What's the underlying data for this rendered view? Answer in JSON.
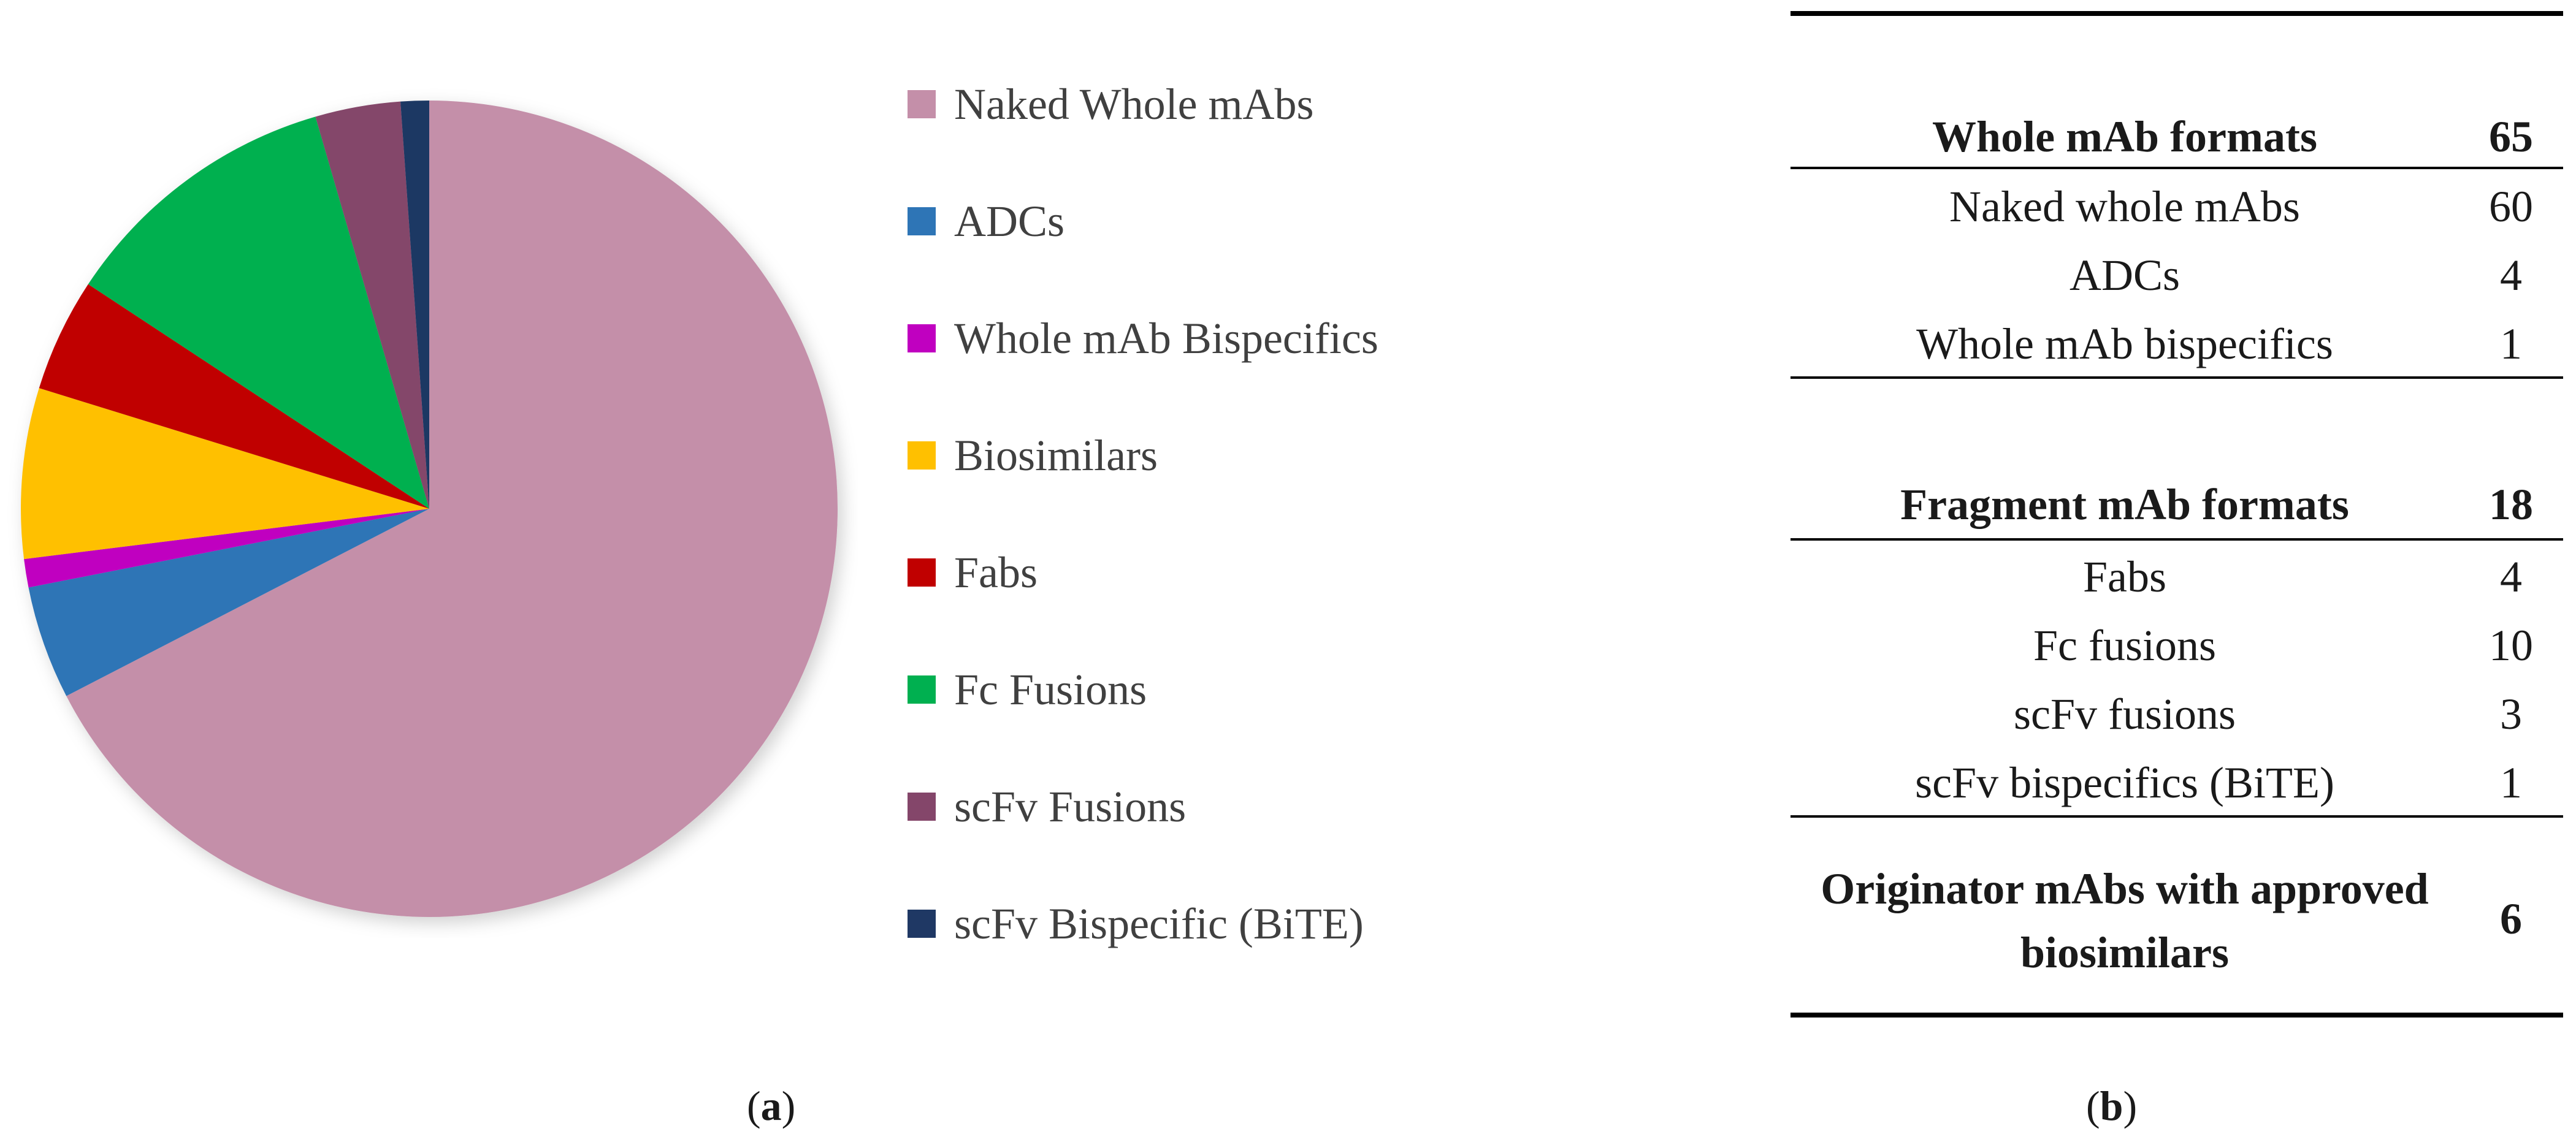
{
  "colors": {
    "naked": "#c48fa9",
    "adcs": "#2e75b6",
    "whole_bispecifics": "#c000c0",
    "biosimilars": "#ffc000",
    "fabs": "#c00000",
    "fc_fusions": "#00b050",
    "scfv_fusions": "#84466a",
    "scfv_bispecific": "#1f3864"
  },
  "chart_data": {
    "type": "pie",
    "title": "",
    "start_angle_deg": 0,
    "direction": "clockwise",
    "slices": [
      {
        "label": "Naked Whole mAbs",
        "value": 60,
        "color_key": "naked"
      },
      {
        "label": "ADCs",
        "value": 4,
        "color_key": "adcs"
      },
      {
        "label": "Whole mAb Bispecifics",
        "value": 1,
        "color_key": "whole_bispecifics"
      },
      {
        "label": "Biosimilars",
        "value": 6,
        "color_key": "biosimilars"
      },
      {
        "label": "Fabs",
        "value": 4,
        "color_key": "fabs"
      },
      {
        "label": "Fc Fusions",
        "value": 10,
        "color_key": "fc_fusions"
      },
      {
        "label": "scFv Fusions",
        "value": 3,
        "color_key": "scfv_fusions"
      },
      {
        "label": " scFv Bispecific (BiTE)",
        "value": 1,
        "color_key": "scfv_bispecific"
      }
    ],
    "legend_position": "right"
  },
  "captions": {
    "a_open": "(",
    "a_letter": "a",
    "a_close": ")",
    "b_open": "(",
    "b_letter": "b",
    "b_close": ")"
  },
  "table": {
    "whole_header": {
      "label": "Whole mAb formats",
      "value": "65"
    },
    "whole_rows": [
      {
        "label": "Naked whole mAbs",
        "value": "60"
      },
      {
        "label": "ADCs",
        "value": "4"
      },
      {
        "label": "Whole mAb bispecifics",
        "value": "1"
      }
    ],
    "fragment_header": {
      "label": "Fragment mAb formats",
      "value": "18"
    },
    "fragment_rows": [
      {
        "label": "Fabs",
        "value": "4"
      },
      {
        "label": "Fc fusions",
        "value": "10"
      },
      {
        "label": "scFv fusions",
        "value": "3"
      },
      {
        "label": "scFv bispecifics (BiTE)",
        "value": "1"
      }
    ],
    "originator": {
      "label": "Originator mAbs with approved biosimilars",
      "value": "6"
    }
  }
}
